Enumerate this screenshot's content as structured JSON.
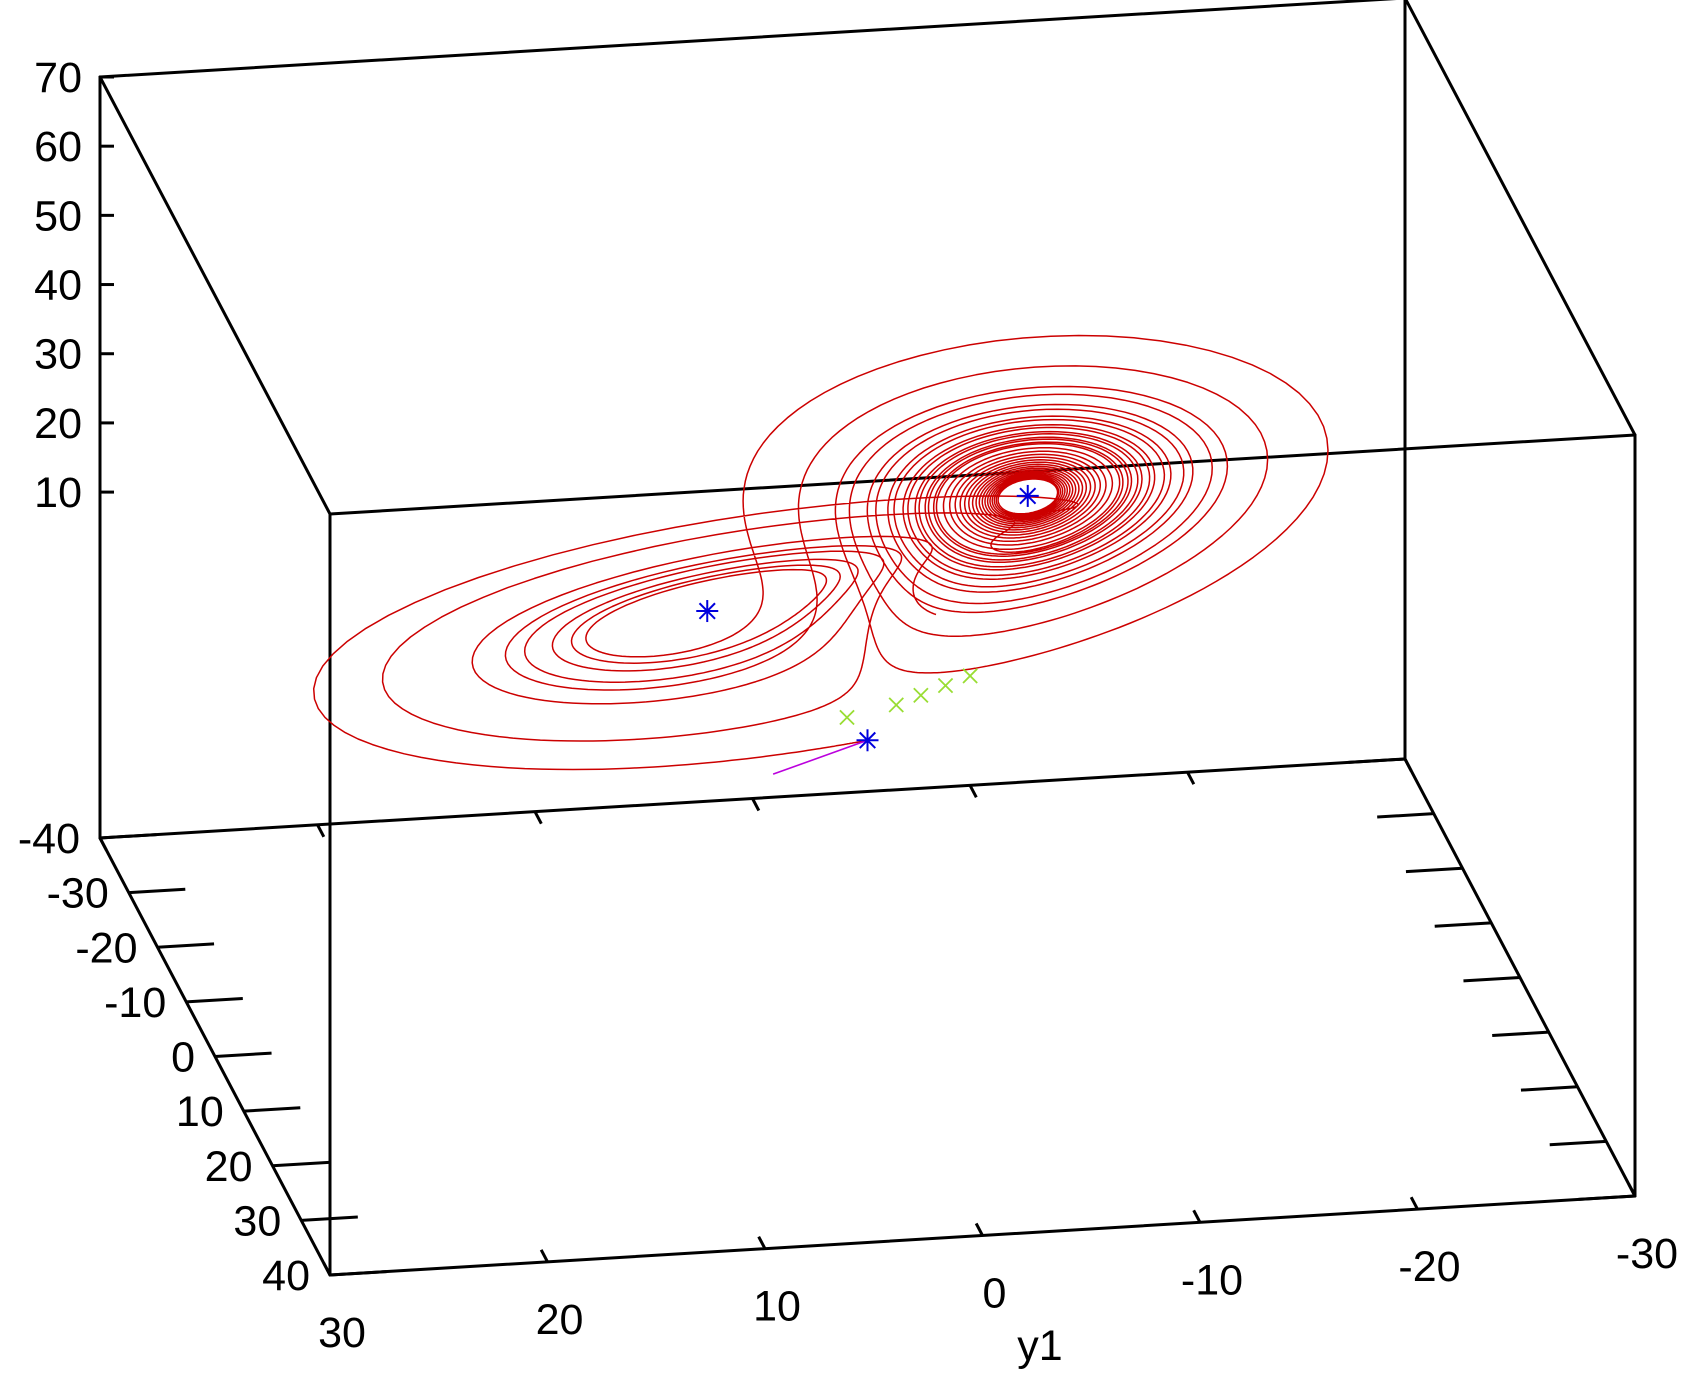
{
  "chart_data": {
    "type": "line",
    "plot_style": "3d",
    "title": "",
    "xlabel": "",
    "ylabel": "y1",
    "zlabel": "",
    "xlim": [
      -40,
      40
    ],
    "ylim": [
      -30,
      30
    ],
    "zlim": [
      -40,
      70
    ],
    "x_ticks": [
      "-40",
      "-30",
      "-20",
      "-10",
      "0",
      "10",
      "20",
      "30",
      "40"
    ],
    "y_ticks": [
      "30",
      "20",
      "10",
      "0",
      "-10",
      "-20",
      "-30"
    ],
    "z_ticks": [
      "-40",
      "10",
      "20",
      "30",
      "40",
      "50",
      "60",
      "70"
    ],
    "grid": false,
    "legend": "none",
    "colors": {
      "trajectory": "#cc0000",
      "fixed_points": "#0000dd",
      "crossings": "#99dd33",
      "start_segment": "#bb00dd",
      "frame": "#000000"
    },
    "lorenz": {
      "sigma": 10,
      "rho": 28,
      "beta": 2.6667,
      "dt": 0.005,
      "steps": 5600
    },
    "series": [
      {
        "kind": "fixed_point",
        "marker": "asterisk",
        "points": [
          {
            "x": 0,
            "y": 0,
            "z": 0
          },
          {
            "x": 8.49,
            "y": 8.49,
            "z": 27
          },
          {
            "x": -8.49,
            "y": -8.49,
            "z": 27
          }
        ]
      },
      {
        "kind": "start_segment",
        "points": [
          {
            "x": 0,
            "y": 0,
            "z": 0
          },
          {
            "x": 5,
            "y": 5,
            "z": 0
          }
        ]
      },
      {
        "kind": "trajectory",
        "start": {
          "x": 0.1,
          "y": 0.1,
          "z": 0
        }
      },
      {
        "kind": "crossing",
        "marker": "cross",
        "points": [
          {
            "x": 8,
            "y": 2,
            "z": 10
          },
          {
            "x": 10,
            "y": 0,
            "z": 13
          },
          {
            "x": 11,
            "y": -1,
            "z": 15
          },
          {
            "x": 12,
            "y": -2,
            "z": 17
          },
          {
            "x": 13,
            "y": -3,
            "z": 19
          }
        ]
      }
    ]
  }
}
